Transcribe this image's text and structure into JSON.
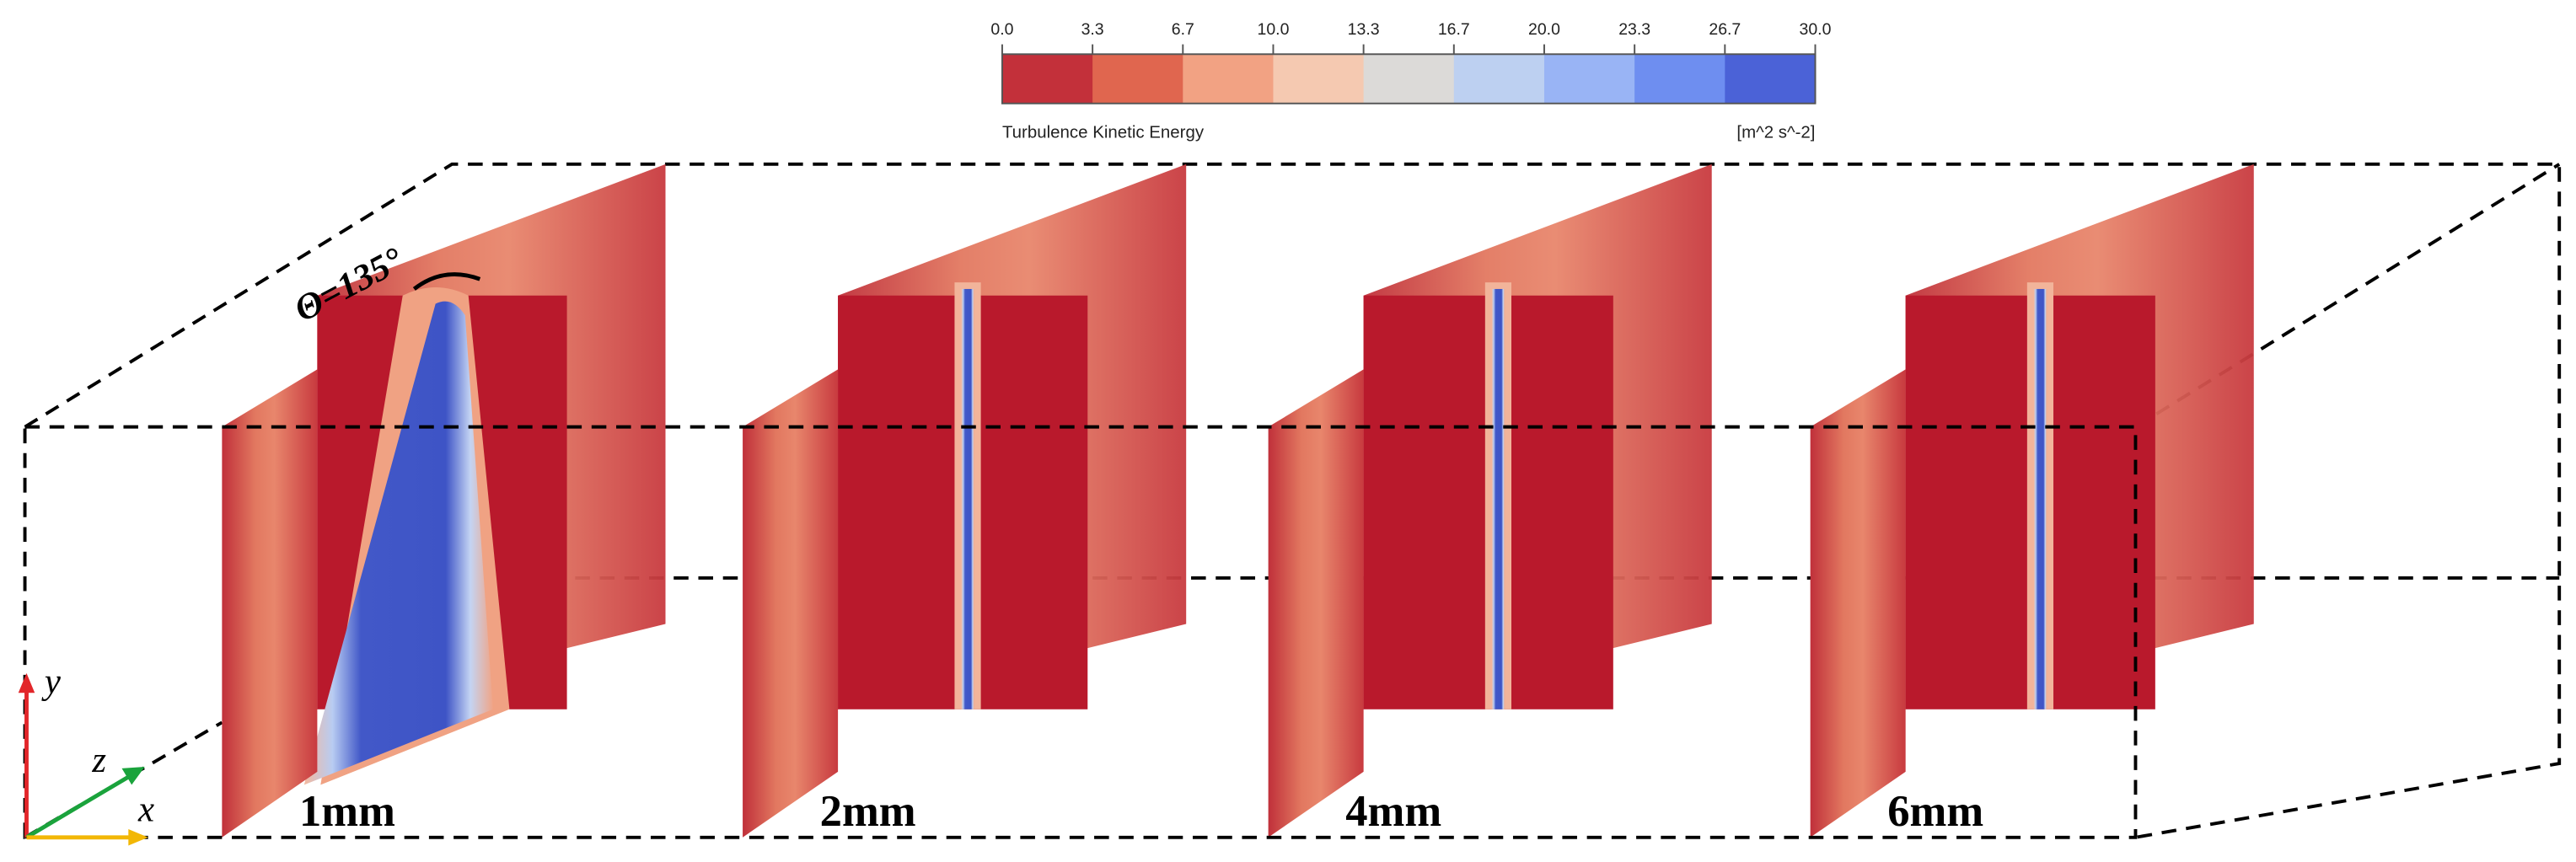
{
  "colorbar": {
    "ticks": [
      "0.0",
      "3.3",
      "6.7",
      "10.0",
      "13.3",
      "16.7",
      "20.0",
      "23.3",
      "26.7",
      "30.0"
    ],
    "colors": [
      "#c3303a",
      "#e0664f",
      "#f2a283",
      "#f5c9b1",
      "#dcdad8",
      "#bdd0f1",
      "#99b4f5",
      "#6e8ef0",
      "#4b62d7"
    ],
    "title": "Turbulence Kinetic Energy",
    "unit": "[m^2 s^-2]"
  },
  "annotation": "Θ=135°",
  "panels": [
    "1mm",
    "2mm",
    "4mm",
    "6mm"
  ],
  "axes": {
    "y": "y",
    "z": "z",
    "x": "x"
  }
}
